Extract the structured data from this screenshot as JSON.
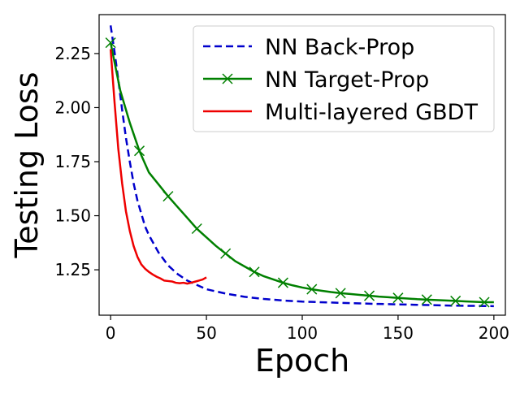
{
  "chart_data": {
    "type": "line",
    "title": "",
    "xlabel": "Epoch",
    "ylabel": "Testing Loss",
    "xlim": [
      -6,
      206
    ],
    "ylim": [
      1.04,
      2.43
    ],
    "grid": false,
    "legend_position": "top-right",
    "x_ticks": [
      0,
      50,
      100,
      150,
      200
    ],
    "x_tick_labels": [
      "0",
      "50",
      "100",
      "150",
      "200"
    ],
    "y_ticks": [
      1.25,
      1.5,
      1.75,
      2.0,
      2.25
    ],
    "y_tick_labels": [
      "1.25",
      "1.50",
      "1.75",
      "2.00",
      "2.25"
    ],
    "series": [
      {
        "name": "NN Back-Prop",
        "color": "#0000cc",
        "style": "dashed",
        "marker": "none",
        "x": [
          0,
          2,
          4,
          6,
          8,
          10,
          12,
          14,
          16,
          18,
          20,
          25,
          30,
          35,
          40,
          45,
          50,
          60,
          70,
          80,
          90,
          100,
          120,
          140,
          160,
          180,
          200
        ],
        "y": [
          2.38,
          2.26,
          2.13,
          1.99,
          1.86,
          1.75,
          1.65,
          1.57,
          1.51,
          1.45,
          1.41,
          1.33,
          1.27,
          1.23,
          1.2,
          1.18,
          1.16,
          1.14,
          1.125,
          1.115,
          1.108,
          1.103,
          1.097,
          1.092,
          1.088,
          1.084,
          1.082
        ]
      },
      {
        "name": "NN Target-Prop",
        "color": "#008000",
        "style": "solid",
        "marker": "x",
        "x": [
          0,
          5,
          10,
          15,
          20,
          25,
          30,
          35,
          40,
          45,
          50,
          55,
          60,
          65,
          70,
          75,
          80,
          85,
          90,
          95,
          100,
          105,
          110,
          115,
          120,
          125,
          130,
          135,
          140,
          145,
          150,
          155,
          160,
          165,
          170,
          175,
          180,
          185,
          190,
          195,
          200
        ],
        "y": [
          2.3,
          2.08,
          1.93,
          1.8,
          1.7,
          1.645,
          1.59,
          1.54,
          1.49,
          1.44,
          1.4,
          1.36,
          1.325,
          1.29,
          1.265,
          1.24,
          1.22,
          1.205,
          1.19,
          1.178,
          1.168,
          1.16,
          1.153,
          1.147,
          1.142,
          1.138,
          1.134,
          1.13,
          1.126,
          1.123,
          1.12,
          1.117,
          1.114,
          1.112,
          1.11,
          1.108,
          1.106,
          1.104,
          1.102,
          1.1,
          1.1
        ],
        "marker_x": [
          0,
          15,
          30,
          45,
          60,
          75,
          90,
          105,
          120,
          135,
          150,
          165,
          180,
          195
        ]
      },
      {
        "name": "Multi-layered GBDT",
        "color": "#ee0000",
        "style": "solid",
        "marker": "none",
        "x": [
          0,
          2,
          4,
          6,
          8,
          10,
          12,
          14,
          16,
          18,
          20,
          22,
          24,
          26,
          28,
          30,
          32,
          34,
          36,
          38,
          40,
          42,
          44,
          46,
          48,
          50
        ],
        "y": [
          2.27,
          2.03,
          1.81,
          1.65,
          1.52,
          1.43,
          1.36,
          1.31,
          1.275,
          1.255,
          1.24,
          1.228,
          1.218,
          1.21,
          1.2,
          1.198,
          1.196,
          1.19,
          1.188,
          1.19,
          1.186,
          1.19,
          1.195,
          1.2,
          1.205,
          1.215
        ]
      }
    ]
  }
}
